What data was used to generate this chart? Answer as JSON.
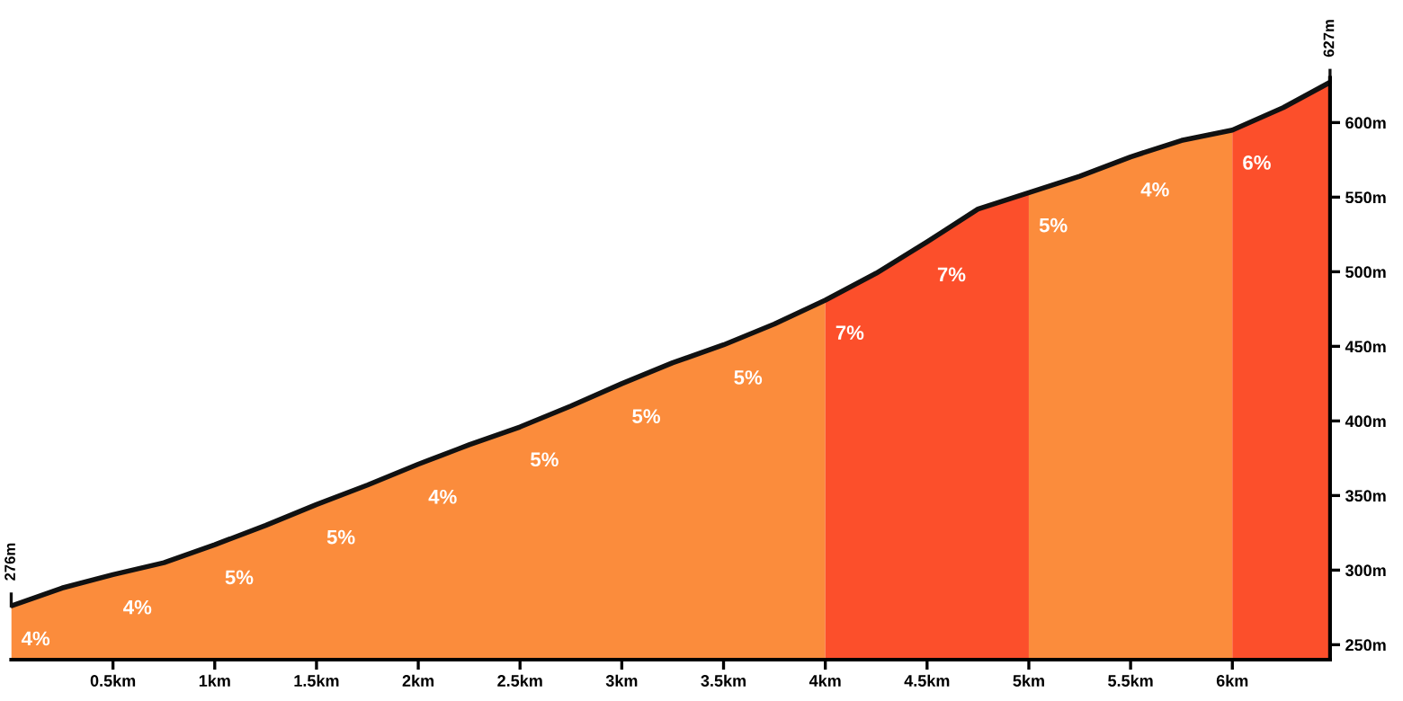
{
  "chart_data": {
    "type": "area",
    "xlim": [
      0,
      6.48
    ],
    "ylim": [
      240,
      630
    ],
    "xticks": [
      {
        "value": 0.5,
        "label": "0.5km"
      },
      {
        "value": 1,
        "label": "1km"
      },
      {
        "value": 1.5,
        "label": "1.5km"
      },
      {
        "value": 2,
        "label": "2km"
      },
      {
        "value": 2.5,
        "label": "2.5km"
      },
      {
        "value": 3,
        "label": "3km"
      },
      {
        "value": 3.5,
        "label": "3.5km"
      },
      {
        "value": 4,
        "label": "4km"
      },
      {
        "value": 4.5,
        "label": "4.5km"
      },
      {
        "value": 5,
        "label": "5km"
      },
      {
        "value": 5.5,
        "label": "5.5km"
      },
      {
        "value": 6,
        "label": "6km"
      }
    ],
    "yticks": [
      {
        "value": 250,
        "label": "250m"
      },
      {
        "value": 300,
        "label": "300m"
      },
      {
        "value": 350,
        "label": "350m"
      },
      {
        "value": 400,
        "label": "400m"
      },
      {
        "value": 450,
        "label": "450m"
      },
      {
        "value": 500,
        "label": "500m"
      },
      {
        "value": 550,
        "label": "550m"
      },
      {
        "value": 600,
        "label": "600m"
      }
    ],
    "grid": false,
    "legend": false,
    "series": [
      {
        "color": "#fb8c3c",
        "x": [
          0,
          0.25,
          0.5,
          0.75,
          1,
          1.25,
          1.5,
          1.75,
          2,
          2.25,
          2.5,
          2.75,
          3,
          3.25,
          3.5,
          3.75,
          4
        ],
        "values": [
          276,
          288,
          297,
          305,
          317,
          330,
          344,
          357,
          371,
          384,
          396,
          410,
          425,
          439,
          451,
          465,
          481
        ]
      },
      {
        "color": "#fc4f2b",
        "x": [
          4,
          4.25,
          4.5,
          4.75,
          5
        ],
        "values": [
          481,
          499,
          520,
          542,
          553
        ]
      },
      {
        "color": "#fb8c3c",
        "x": [
          5,
          5.25,
          5.5,
          5.75,
          6
        ],
        "values": [
          553,
          564,
          577,
          588,
          595
        ]
      },
      {
        "color": "#fc4f2b",
        "x": [
          6,
          6.25,
          6.48
        ],
        "values": [
          595,
          610,
          627
        ]
      },
      {
        "type": "line",
        "color": "#111111",
        "x": [
          0,
          0.25,
          0.5,
          0.75,
          1,
          1.25,
          1.5,
          1.75,
          2,
          2.25,
          2.5,
          2.75,
          3,
          3.25,
          3.5,
          3.75,
          4,
          4.25,
          4.5,
          4.75,
          5,
          5.25,
          5.5,
          5.75,
          6,
          6.25,
          6.48
        ],
        "values": [
          276,
          288,
          297,
          305,
          317,
          330,
          344,
          357,
          371,
          384,
          396,
          410,
          425,
          439,
          451,
          465,
          481,
          499,
          520,
          542,
          553,
          564,
          577,
          588,
          595,
          610,
          627
        ]
      }
    ],
    "annotations": [
      {
        "text": "276m",
        "x": 0,
        "y": 276
      },
      {
        "text": "627m",
        "x": 6.48,
        "y": 627
      },
      {
        "text": "4%",
        "x": 0,
        "y": 276
      },
      {
        "text": "4%",
        "x": 0.5,
        "y": 297
      },
      {
        "text": "5%",
        "x": 1,
        "y": 317
      },
      {
        "text": "5%",
        "x": 1.5,
        "y": 344
      },
      {
        "text": "4%",
        "x": 2,
        "y": 371
      },
      {
        "text": "5%",
        "x": 2.5,
        "y": 396
      },
      {
        "text": "5%",
        "x": 3,
        "y": 425
      },
      {
        "text": "5%",
        "x": 3.5,
        "y": 451
      },
      {
        "text": "7%",
        "x": 4,
        "y": 481
      },
      {
        "text": "7%",
        "x": 4.5,
        "y": 520
      },
      {
        "text": "5%",
        "x": 5,
        "y": 553
      },
      {
        "text": "4%",
        "x": 5.5,
        "y": 577
      },
      {
        "text": "6%",
        "x": 6,
        "y": 595
      }
    ]
  }
}
